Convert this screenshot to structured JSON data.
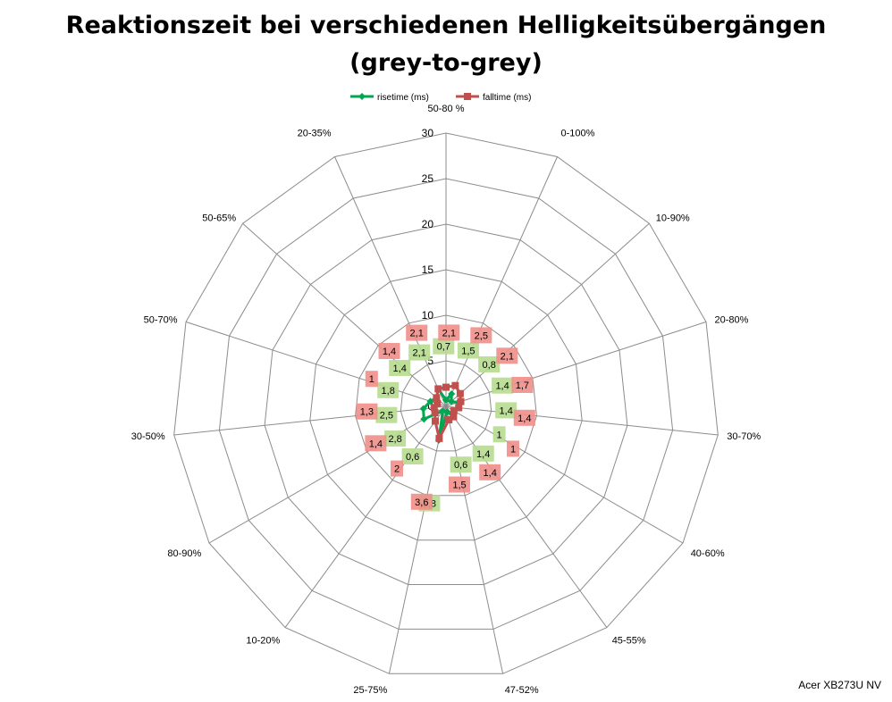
{
  "chart_data": {
    "type": "radar",
    "title": "Reaktionszeit bei verschiedenen Helligkeitsübergängen",
    "subtitle": "(grey-to-grey)",
    "categories": [
      "50-80 %",
      "0-100%",
      "10-90%",
      "20-80%",
      "30-70%",
      "40-60%",
      "45-55%",
      "47-52%",
      "25-75%",
      "10-20%",
      "80-90%",
      "30-50%",
      "50-70%",
      "50-65%",
      "20-35%"
    ],
    "rlim": [
      0,
      30
    ],
    "ticks": [
      "0",
      "5",
      "10",
      "15",
      "20",
      "25",
      "30"
    ],
    "grid": true,
    "legend_position": "top",
    "series": [
      {
        "name": "risetime (ms)",
        "color": "#00A651",
        "label_bg": "#B6DC8F",
        "values": [
          0.7,
          1.5,
          0.8,
          1.4,
          1.4,
          1.0,
          1.4,
          0.6,
          3.8,
          0.6,
          2.8,
          2.5,
          1.8,
          1.4,
          2.1
        ],
        "labels": [
          "0,7",
          "1,5",
          "0,8",
          "1,4",
          "1,4",
          "1",
          "1,4",
          "0,6",
          "3,8",
          "0,6",
          "2,8",
          "2,5",
          "1,8",
          "1,4",
          "2,1"
        ]
      },
      {
        "name": "falltime (ms)",
        "color": "#C0504D",
        "label_bg": "#F08E88",
        "values": [
          2.1,
          2.5,
          2.1,
          1.7,
          1.4,
          1.0,
          1.4,
          1.5,
          3.6,
          2.0,
          1.4,
          1.3,
          1.0,
          1.4,
          2.1
        ],
        "labels": [
          "2,1",
          "2,5",
          "2,1",
          "1,7",
          "1,4",
          "1",
          "1,4",
          "1,5",
          "3,6",
          "2",
          "1,4",
          "1,3",
          "1",
          "1,4",
          "2,1"
        ]
      }
    ]
  },
  "footer": "Acer XB273U NV"
}
